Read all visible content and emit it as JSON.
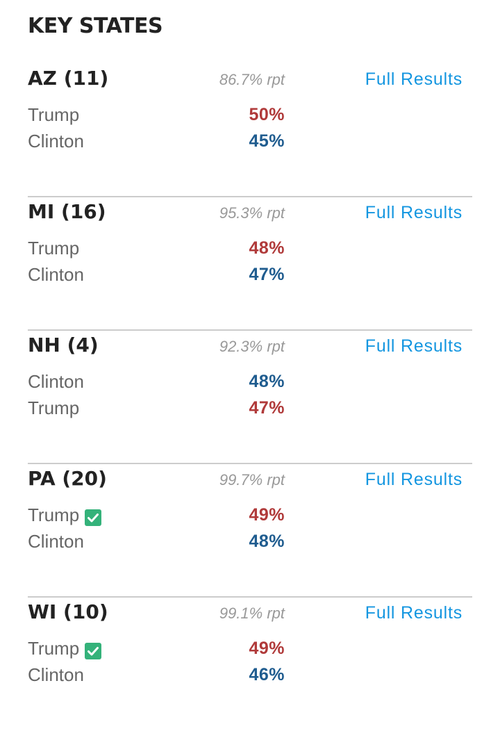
{
  "title": "KEY STATES",
  "colors": {
    "republican": "#b03a3a",
    "democrat": "#1f5c8f",
    "link": "#1496e0",
    "winner_check": "#34b27a"
  },
  "states": [
    {
      "name": "AZ (11)",
      "reporting": "86.7% rpt",
      "link_label": "Full Results",
      "candidates": [
        {
          "name": "Trump",
          "pct": "50%",
          "party": "republican",
          "winner": false
        },
        {
          "name": "Clinton",
          "pct": "45%",
          "party": "democrat",
          "winner": false
        }
      ]
    },
    {
      "name": "MI (16)",
      "reporting": "95.3% rpt",
      "link_label": "Full Results",
      "candidates": [
        {
          "name": "Trump",
          "pct": "48%",
          "party": "republican",
          "winner": false
        },
        {
          "name": "Clinton",
          "pct": "47%",
          "party": "democrat",
          "winner": false
        }
      ]
    },
    {
      "name": "NH (4)",
      "reporting": "92.3% rpt",
      "link_label": "Full Results",
      "candidates": [
        {
          "name": "Clinton",
          "pct": "48%",
          "party": "democrat",
          "winner": false
        },
        {
          "name": "Trump",
          "pct": "47%",
          "party": "republican",
          "winner": false
        }
      ]
    },
    {
      "name": "PA (20)",
      "reporting": "99.7% rpt",
      "link_label": "Full Results",
      "candidates": [
        {
          "name": "Trump",
          "pct": "49%",
          "party": "republican",
          "winner": true
        },
        {
          "name": "Clinton",
          "pct": "48%",
          "party": "democrat",
          "winner": false
        }
      ]
    },
    {
      "name": "WI (10)",
      "reporting": "99.1% rpt",
      "link_label": "Full Results",
      "candidates": [
        {
          "name": "Trump",
          "pct": "49%",
          "party": "republican",
          "winner": true
        },
        {
          "name": "Clinton",
          "pct": "46%",
          "party": "democrat",
          "winner": false
        }
      ]
    }
  ]
}
